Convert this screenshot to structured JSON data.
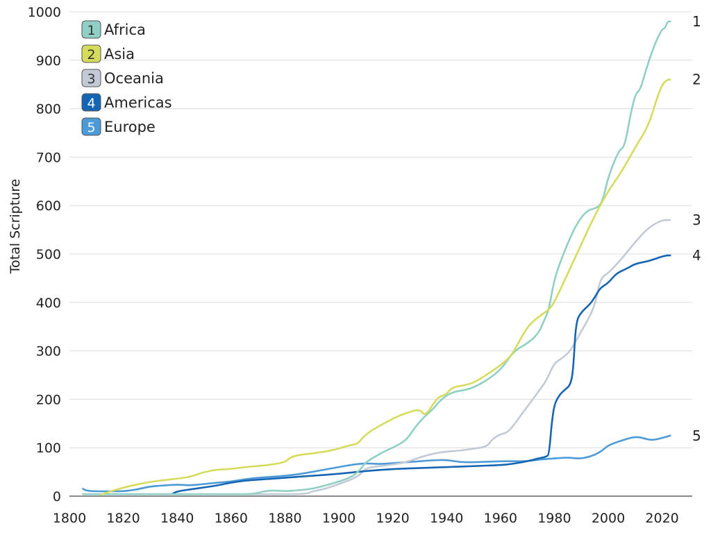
{
  "chart_data": {
    "type": "line",
    "title": "",
    "xlabel": "",
    "ylabel": "Total Scripture",
    "xlim": [
      1800,
      2025
    ],
    "ylim": [
      0,
      1000
    ],
    "x_ticks": [
      "1800",
      "1820",
      "1840",
      "1860",
      "1880",
      "1900",
      "1920",
      "1940",
      "1960",
      "1980",
      "2000",
      "2020"
    ],
    "y_ticks": [
      "0",
      "100",
      "200",
      "300",
      "400",
      "500",
      "600",
      "700",
      "800",
      "900",
      "1000"
    ],
    "grid": "horizontal",
    "legend_position": "top-left",
    "series": [
      {
        "name": "Africa",
        "number": "1",
        "color": "#8fcfc4",
        "points": [
          [
            1805,
            4
          ],
          [
            1820,
            4
          ],
          [
            1840,
            4
          ],
          [
            1860,
            4
          ],
          [
            1868,
            4
          ],
          [
            1872,
            10
          ],
          [
            1876,
            12
          ],
          [
            1880,
            10
          ],
          [
            1885,
            12
          ],
          [
            1890,
            15
          ],
          [
            1895,
            22
          ],
          [
            1900,
            30
          ],
          [
            1905,
            40
          ],
          [
            1908,
            55
          ],
          [
            1910,
            70
          ],
          [
            1913,
            80
          ],
          [
            1916,
            90
          ],
          [
            1920,
            100
          ],
          [
            1925,
            115
          ],
          [
            1928,
            140
          ],
          [
            1931,
            160
          ],
          [
            1935,
            180
          ],
          [
            1938,
            200
          ],
          [
            1942,
            215
          ],
          [
            1948,
            220
          ],
          [
            1952,
            230
          ],
          [
            1955,
            240
          ],
          [
            1960,
            260
          ],
          [
            1965,
            300
          ],
          [
            1970,
            315
          ],
          [
            1974,
            335
          ],
          [
            1976,
            360
          ],
          [
            1978,
            385
          ],
          [
            1980,
            450
          ],
          [
            1984,
            510
          ],
          [
            1988,
            560
          ],
          [
            1992,
            590
          ],
          [
            1996,
            595
          ],
          [
            1998,
            610
          ],
          [
            2000,
            660
          ],
          [
            2004,
            715
          ],
          [
            2006,
            720
          ],
          [
            2008,
            780
          ],
          [
            2010,
            830
          ],
          [
            2012,
            840
          ],
          [
            2014,
            880
          ],
          [
            2017,
            930
          ],
          [
            2020,
            965
          ],
          [
            2021,
            965
          ],
          [
            2022,
            980
          ],
          [
            2023,
            980
          ]
        ]
      },
      {
        "name": "Asia",
        "number": "2",
        "color": "#d5dc5c",
        "points": [
          [
            1812,
            4
          ],
          [
            1820,
            18
          ],
          [
            1830,
            30
          ],
          [
            1840,
            36
          ],
          [
            1845,
            40
          ],
          [
            1850,
            50
          ],
          [
            1855,
            55
          ],
          [
            1860,
            56
          ],
          [
            1865,
            60
          ],
          [
            1870,
            62
          ],
          [
            1875,
            65
          ],
          [
            1880,
            70
          ],
          [
            1882,
            80
          ],
          [
            1885,
            85
          ],
          [
            1890,
            88
          ],
          [
            1895,
            92
          ],
          [
            1900,
            98
          ],
          [
            1902,
            102
          ],
          [
            1905,
            106
          ],
          [
            1907,
            108
          ],
          [
            1910,
            128
          ],
          [
            1915,
            145
          ],
          [
            1920,
            160
          ],
          [
            1925,
            172
          ],
          [
            1930,
            180
          ],
          [
            1932,
            165
          ],
          [
            1935,
            190
          ],
          [
            1937,
            205
          ],
          [
            1940,
            210
          ],
          [
            1942,
            225
          ],
          [
            1948,
            230
          ],
          [
            1952,
            240
          ],
          [
            1956,
            255
          ],
          [
            1960,
            270
          ],
          [
            1964,
            290
          ],
          [
            1966,
            310
          ],
          [
            1970,
            350
          ],
          [
            1974,
            370
          ],
          [
            1978,
            385
          ],
          [
            1980,
            400
          ],
          [
            1985,
            460
          ],
          [
            1990,
            520
          ],
          [
            1995,
            580
          ],
          [
            2000,
            630
          ],
          [
            2005,
            670
          ],
          [
            2010,
            720
          ],
          [
            2015,
            765
          ],
          [
            2018,
            820
          ],
          [
            2020,
            850
          ],
          [
            2022,
            860
          ],
          [
            2023,
            860
          ]
        ]
      },
      {
        "name": "Oceania",
        "number": "3",
        "color": "#c2cad5",
        "points": [
          [
            1805,
            4
          ],
          [
            1840,
            4
          ],
          [
            1870,
            4
          ],
          [
            1888,
            4
          ],
          [
            1890,
            10
          ],
          [
            1895,
            15
          ],
          [
            1900,
            25
          ],
          [
            1905,
            35
          ],
          [
            1908,
            45
          ],
          [
            1910,
            58
          ],
          [
            1915,
            62
          ],
          [
            1920,
            65
          ],
          [
            1925,
            70
          ],
          [
            1930,
            80
          ],
          [
            1935,
            88
          ],
          [
            1940,
            92
          ],
          [
            1945,
            94
          ],
          [
            1950,
            98
          ],
          [
            1955,
            102
          ],
          [
            1957,
            118
          ],
          [
            1960,
            128
          ],
          [
            1963,
            132
          ],
          [
            1968,
            170
          ],
          [
            1972,
            200
          ],
          [
            1976,
            230
          ],
          [
            1978,
            250
          ],
          [
            1980,
            275
          ],
          [
            1983,
            285
          ],
          [
            1986,
            300
          ],
          [
            1990,
            340
          ],
          [
            1995,
            390
          ],
          [
            1997,
            450
          ],
          [
            2000,
            460
          ],
          [
            2005,
            490
          ],
          [
            2010,
            525
          ],
          [
            2015,
            555
          ],
          [
            2020,
            570
          ],
          [
            2023,
            570
          ]
        ]
      },
      {
        "name": "Americas",
        "number": "4",
        "color": "#1565b5",
        "points": [
          [
            1838,
            4
          ],
          [
            1840,
            10
          ],
          [
            1845,
            14
          ],
          [
            1850,
            18
          ],
          [
            1855,
            22
          ],
          [
            1860,
            28
          ],
          [
            1865,
            32
          ],
          [
            1870,
            34
          ],
          [
            1880,
            38
          ],
          [
            1890,
            42
          ],
          [
            1900,
            46
          ],
          [
            1910,
            52
          ],
          [
            1920,
            56
          ],
          [
            1930,
            58
          ],
          [
            1940,
            60
          ],
          [
            1950,
            62
          ],
          [
            1960,
            64
          ],
          [
            1965,
            67
          ],
          [
            1970,
            72
          ],
          [
            1974,
            78
          ],
          [
            1976,
            80
          ],
          [
            1977,
            82
          ],
          [
            1978,
            85
          ],
          [
            1979,
            150
          ],
          [
            1980,
            190
          ],
          [
            1982,
            210
          ],
          [
            1984,
            220
          ],
          [
            1986,
            230
          ],
          [
            1987,
            260
          ],
          [
            1988,
            360
          ],
          [
            1990,
            380
          ],
          [
            1993,
            395
          ],
          [
            1995,
            410
          ],
          [
            1997,
            430
          ],
          [
            2000,
            440
          ],
          [
            2003,
            460
          ],
          [
            2007,
            470
          ],
          [
            2010,
            480
          ],
          [
            2015,
            485
          ],
          [
            2020,
            495
          ],
          [
            2022,
            497
          ],
          [
            2023,
            497
          ]
        ]
      },
      {
        "name": "Europe",
        "number": "5",
        "color": "#4c9ad8",
        "points": [
          [
            1805,
            15
          ],
          [
            1807,
            10
          ],
          [
            1815,
            10
          ],
          [
            1820,
            10
          ],
          [
            1823,
            12
          ],
          [
            1826,
            15
          ],
          [
            1830,
            20
          ],
          [
            1835,
            22
          ],
          [
            1840,
            24
          ],
          [
            1845,
            22
          ],
          [
            1850,
            25
          ],
          [
            1855,
            28
          ],
          [
            1860,
            30
          ],
          [
            1865,
            35
          ],
          [
            1870,
            38
          ],
          [
            1875,
            40
          ],
          [
            1880,
            42
          ],
          [
            1885,
            45
          ],
          [
            1890,
            50
          ],
          [
            1895,
            55
          ],
          [
            1900,
            60
          ],
          [
            1905,
            65
          ],
          [
            1910,
            68
          ],
          [
            1915,
            66
          ],
          [
            1920,
            68
          ],
          [
            1925,
            70
          ],
          [
            1930,
            72
          ],
          [
            1935,
            74
          ],
          [
            1940,
            75
          ],
          [
            1945,
            70
          ],
          [
            1950,
            70
          ],
          [
            1955,
            71
          ],
          [
            1960,
            72
          ],
          [
            1965,
            72
          ],
          [
            1970,
            72
          ],
          [
            1975,
            76
          ],
          [
            1980,
            78
          ],
          [
            1985,
            80
          ],
          [
            1988,
            78
          ],
          [
            1990,
            78
          ],
          [
            1992,
            80
          ],
          [
            1995,
            85
          ],
          [
            1998,
            95
          ],
          [
            2000,
            105
          ],
          [
            2005,
            115
          ],
          [
            2010,
            123
          ],
          [
            2013,
            120
          ],
          [
            2016,
            115
          ],
          [
            2020,
            120
          ],
          [
            2023,
            125
          ]
        ]
      }
    ]
  }
}
